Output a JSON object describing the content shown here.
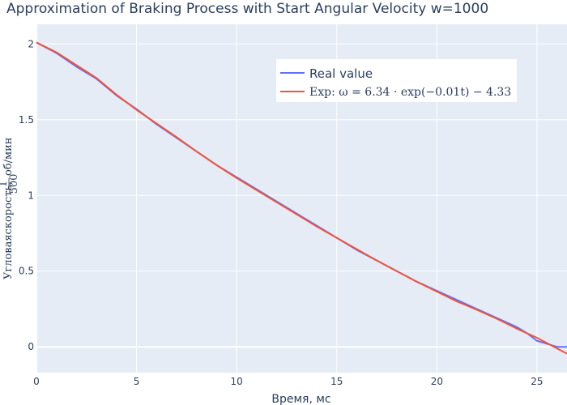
{
  "chart_data": {
    "type": "line",
    "title": "Approximation of Braking Process with Start Angular Velocity w=1000",
    "xlabel": "Время, мс",
    "ylabel": {
      "prefix": "Угловаяскорость,",
      "frac_num": "1",
      "frac_den": "500",
      "suffix": "об/мин"
    },
    "xlim": [
      0,
      26.5
    ],
    "ylim": [
      -0.17,
      2.13
    ],
    "x_ticks": [
      0,
      5,
      10,
      15,
      20,
      25
    ],
    "y_ticks": [
      0,
      0.5,
      1,
      1.5,
      2
    ],
    "x_tick_labels": [
      "0",
      "5",
      "10",
      "15",
      "20",
      "25"
    ],
    "y_tick_labels": [
      "0",
      "0.5",
      "1",
      "1.5",
      "2"
    ],
    "grid": true,
    "legend_position": "top-right",
    "series": [
      {
        "name": "Real value",
        "color": "#636efa",
        "x": [
          0,
          1,
          2,
          3,
          4,
          5,
          6,
          7,
          8,
          9,
          10,
          11,
          12,
          13,
          14,
          15,
          16,
          17,
          18,
          19,
          20,
          21,
          22,
          23,
          24,
          24.5,
          25,
          25.5,
          26,
          26.5
        ],
        "y": [
          2.01,
          1.94,
          1.85,
          1.77,
          1.66,
          1.57,
          1.47,
          1.38,
          1.29,
          1.2,
          1.12,
          1.04,
          0.96,
          0.88,
          0.8,
          0.72,
          0.64,
          0.57,
          0.5,
          0.43,
          0.37,
          0.31,
          0.25,
          0.19,
          0.13,
          0.09,
          0.04,
          0.02,
          0.0,
          0.0
        ]
      },
      {
        "name": "Exp: ω = 6.34 · exp(−0.01t) − 4.33",
        "color": "#ef553b",
        "x": [
          0,
          1,
          2,
          3,
          4,
          5,
          6,
          7,
          8,
          9,
          10,
          11,
          12,
          13,
          14,
          15,
          16,
          17,
          18,
          19,
          20,
          21,
          22,
          23,
          24,
          25,
          26,
          26.5
        ],
        "y": [
          2.01,
          1.945,
          1.86,
          1.775,
          1.665,
          1.565,
          1.475,
          1.385,
          1.29,
          1.2,
          1.115,
          1.035,
          0.955,
          0.875,
          0.795,
          0.72,
          0.645,
          0.57,
          0.5,
          0.43,
          0.365,
          0.3,
          0.245,
          0.185,
          0.12,
          0.06,
          -0.01,
          -0.045
        ]
      }
    ],
    "legend_entries": [
      {
        "label": "Real value",
        "color": "#636efa"
      },
      {
        "label": "Exp: ω = 6.34 · exp(−0.01t) − 4.33",
        "color": "#ef553b"
      }
    ]
  },
  "colors": {
    "plot_background": "#e5ecf6",
    "grid": "#ffffff",
    "text": "#2a3f5f"
  }
}
